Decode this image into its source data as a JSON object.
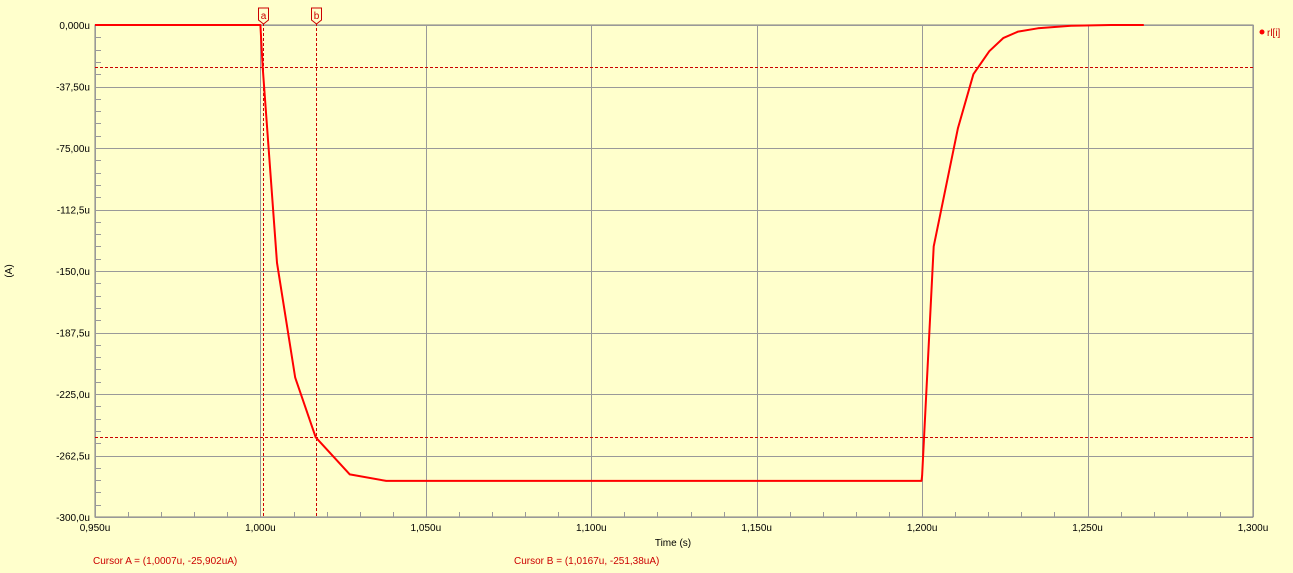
{
  "chart_data": {
    "type": "line",
    "xlabel": "Time (s)",
    "ylabel": "(A)",
    "xlim": [
      0.95,
      1.3
    ],
    "ylim": [
      -300,
      0
    ],
    "x_ticks": [
      {
        "value": 0.95,
        "label": "0,950u"
      },
      {
        "value": 1.0,
        "label": "1,000u"
      },
      {
        "value": 1.05,
        "label": "1,050u"
      },
      {
        "value": 1.1,
        "label": "1,100u"
      },
      {
        "value": 1.15,
        "label": "1,150u"
      },
      {
        "value": 1.2,
        "label": "1,200u"
      },
      {
        "value": 1.25,
        "label": "1,250u"
      },
      {
        "value": 1.3,
        "label": "1,300u"
      }
    ],
    "y_ticks": [
      {
        "value": 0,
        "label": "0,000u"
      },
      {
        "value": -37.5,
        "label": "-37,50u"
      },
      {
        "value": -75,
        "label": "-75,00u"
      },
      {
        "value": -112.5,
        "label": "-112,5u"
      },
      {
        "value": -150,
        "label": "-150,0u"
      },
      {
        "value": -187.5,
        "label": "-187,5u"
      },
      {
        "value": -225,
        "label": "-225,0u"
      },
      {
        "value": -262.5,
        "label": "-262,5u"
      },
      {
        "value": -300,
        "label": "-300,0u"
      }
    ],
    "grid": true,
    "legend": "right",
    "series": [
      {
        "name": "rl[i]",
        "color": "#ff0000",
        "x": [
          0.95,
          1.0,
          1.0007,
          1.005,
          1.0105,
          1.0167,
          1.027,
          1.038,
          1.1,
          1.15,
          1.1998,
          1.2,
          1.2035,
          1.2108,
          1.2155,
          1.2203,
          1.2245,
          1.229,
          1.235,
          1.245,
          1.257,
          1.267
        ],
        "y": [
          0,
          0,
          -25.902,
          -145,
          -215,
          -251.38,
          -274,
          -278,
          -278,
          -278,
          -278,
          -275,
          -135,
          -63,
          -30,
          -16,
          -8,
          -4,
          -2,
          -0.5,
          0,
          0
        ]
      }
    ],
    "cursors": [
      {
        "name": "a",
        "x": 1.0007,
        "y": -25.902
      },
      {
        "name": "b",
        "x": 1.0167,
        "y": -251.38
      }
    ],
    "cursor_readouts": [
      "Cursor A = (1,0007u, -25,902uA)",
      "Cursor B = (1,0167u, -251,38uA)"
    ],
    "colors": {
      "background": "#ffffcc",
      "grid": "#999999",
      "trace": "#ff0000",
      "cursor": "#cc0000",
      "axis_text": "#000000",
      "readout_text": "#cc0000"
    }
  }
}
